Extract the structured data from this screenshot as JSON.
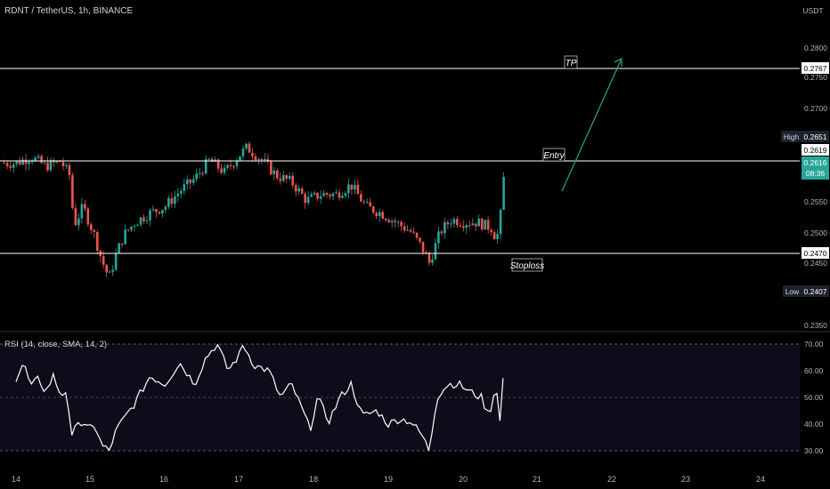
{
  "header": {
    "symbol_line": "RDNT / TetherUS, 1h, BINANCE"
  },
  "price_axis": {
    "currency": "USDT",
    "ticks": [
      "0.2800",
      "0.2750",
      "0.2700",
      "0.2550",
      "0.2500",
      "0.2450",
      "0.2350"
    ]
  },
  "levels": {
    "tp": {
      "label": "TP",
      "price": "0.2767"
    },
    "entry": {
      "label": "Entry",
      "price": "0.2619"
    },
    "stoploss": {
      "label": "Stoploss",
      "price": "0.2470"
    }
  },
  "badges": {
    "high": {
      "label": "High",
      "value": "0.2651"
    },
    "current": {
      "value": "0.2616",
      "countdown": "08:36"
    },
    "low": {
      "label": "Low",
      "value": "0.2407"
    }
  },
  "rsi": {
    "title": "RSI (14, close, SMA, 14, 2)",
    "ticks": [
      "70.00",
      "60.00",
      "50.00",
      "40.00",
      "30.00"
    ]
  },
  "time_axis": {
    "labels": [
      "14",
      "15",
      "16",
      "17",
      "18",
      "19",
      "20",
      "21",
      "22",
      "23",
      "24"
    ]
  },
  "colors": {
    "up": "#26a69a",
    "down": "#ef5350",
    "line": "#ffffff",
    "arrow": "#26a69a",
    "badge_current": "#26a69a",
    "badge_dark": "#1e222d"
  },
  "chart_data": {
    "type": "candlestick",
    "price_range": [
      0.235,
      0.2825
    ],
    "current_price": 0.2616,
    "session_high": 0.2651,
    "session_low": 0.2407,
    "horizontal_levels": [
      0.2767,
      0.2619,
      0.247
    ],
    "close_path": [
      [
        14.0,
        0.2615
      ],
      [
        14.2,
        0.2625
      ],
      [
        14.4,
        0.261
      ],
      [
        14.6,
        0.2618
      ],
      [
        14.72,
        0.2595
      ],
      [
        14.78,
        0.2515
      ],
      [
        14.9,
        0.2545
      ],
      [
        15.05,
        0.25
      ],
      [
        15.15,
        0.246
      ],
      [
        15.25,
        0.243
      ],
      [
        15.35,
        0.247
      ],
      [
        15.45,
        0.25
      ],
      [
        15.6,
        0.252
      ],
      [
        15.8,
        0.2535
      ],
      [
        16.0,
        0.2545
      ],
      [
        16.2,
        0.257
      ],
      [
        16.4,
        0.259
      ],
      [
        16.6,
        0.262
      ],
      [
        16.8,
        0.26
      ],
      [
        17.0,
        0.2628
      ],
      [
        17.1,
        0.264
      ],
      [
        17.3,
        0.262
      ],
      [
        17.5,
        0.2595
      ],
      [
        17.7,
        0.2585
      ],
      [
        17.9,
        0.2555
      ],
      [
        18.1,
        0.2565
      ],
      [
        18.3,
        0.2565
      ],
      [
        18.5,
        0.258
      ],
      [
        18.7,
        0.2545
      ],
      [
        18.9,
        0.2535
      ],
      [
        19.1,
        0.252
      ],
      [
        19.3,
        0.2505
      ],
      [
        19.45,
        0.248
      ],
      [
        19.55,
        0.2455
      ],
      [
        19.7,
        0.2505
      ],
      [
        19.85,
        0.2525
      ],
      [
        20.0,
        0.252
      ],
      [
        20.2,
        0.252
      ],
      [
        20.4,
        0.251
      ],
      [
        20.45,
        0.249
      ],
      [
        20.5,
        0.252
      ],
      [
        20.55,
        0.259
      ],
      [
        20.58,
        0.2616
      ]
    ],
    "rsi_path": [
      [
        14.0,
        57
      ],
      [
        14.1,
        63
      ],
      [
        14.2,
        54
      ],
      [
        14.3,
        57
      ],
      [
        14.4,
        52
      ],
      [
        14.5,
        58
      ],
      [
        14.6,
        51
      ],
      [
        14.7,
        53
      ],
      [
        14.72,
        30
      ],
      [
        14.8,
        42
      ],
      [
        14.95,
        38
      ],
      [
        15.05,
        40
      ],
      [
        15.15,
        32
      ],
      [
        15.25,
        30
      ],
      [
        15.35,
        38
      ],
      [
        15.45,
        42
      ],
      [
        15.6,
        48
      ],
      [
        15.8,
        58
      ],
      [
        16.0,
        55
      ],
      [
        16.2,
        63
      ],
      [
        16.4,
        55
      ],
      [
        16.55,
        65
      ],
      [
        16.7,
        70
      ],
      [
        16.85,
        60
      ],
      [
        17.0,
        66
      ],
      [
        17.05,
        70
      ],
      [
        17.2,
        62
      ],
      [
        17.4,
        60
      ],
      [
        17.55,
        50
      ],
      [
        17.7,
        55
      ],
      [
        17.85,
        45
      ],
      [
        17.95,
        38
      ],
      [
        18.05,
        50
      ],
      [
        18.2,
        41
      ],
      [
        18.35,
        50
      ],
      [
        18.5,
        55
      ],
      [
        18.65,
        43
      ],
      [
        18.85,
        45
      ],
      [
        19.0,
        40
      ],
      [
        19.15,
        42
      ],
      [
        19.3,
        41
      ],
      [
        19.45,
        36
      ],
      [
        19.55,
        30
      ],
      [
        19.65,
        50
      ],
      [
        19.8,
        55
      ],
      [
        19.95,
        55
      ],
      [
        20.1,
        52
      ],
      [
        20.25,
        50
      ],
      [
        20.35,
        43
      ],
      [
        20.45,
        55
      ],
      [
        20.5,
        41
      ],
      [
        20.55,
        60
      ],
      [
        20.58,
        69
      ]
    ],
    "rsi_range": [
      25,
      72
    ],
    "rsi_levels": [
      70,
      50,
      30
    ]
  }
}
